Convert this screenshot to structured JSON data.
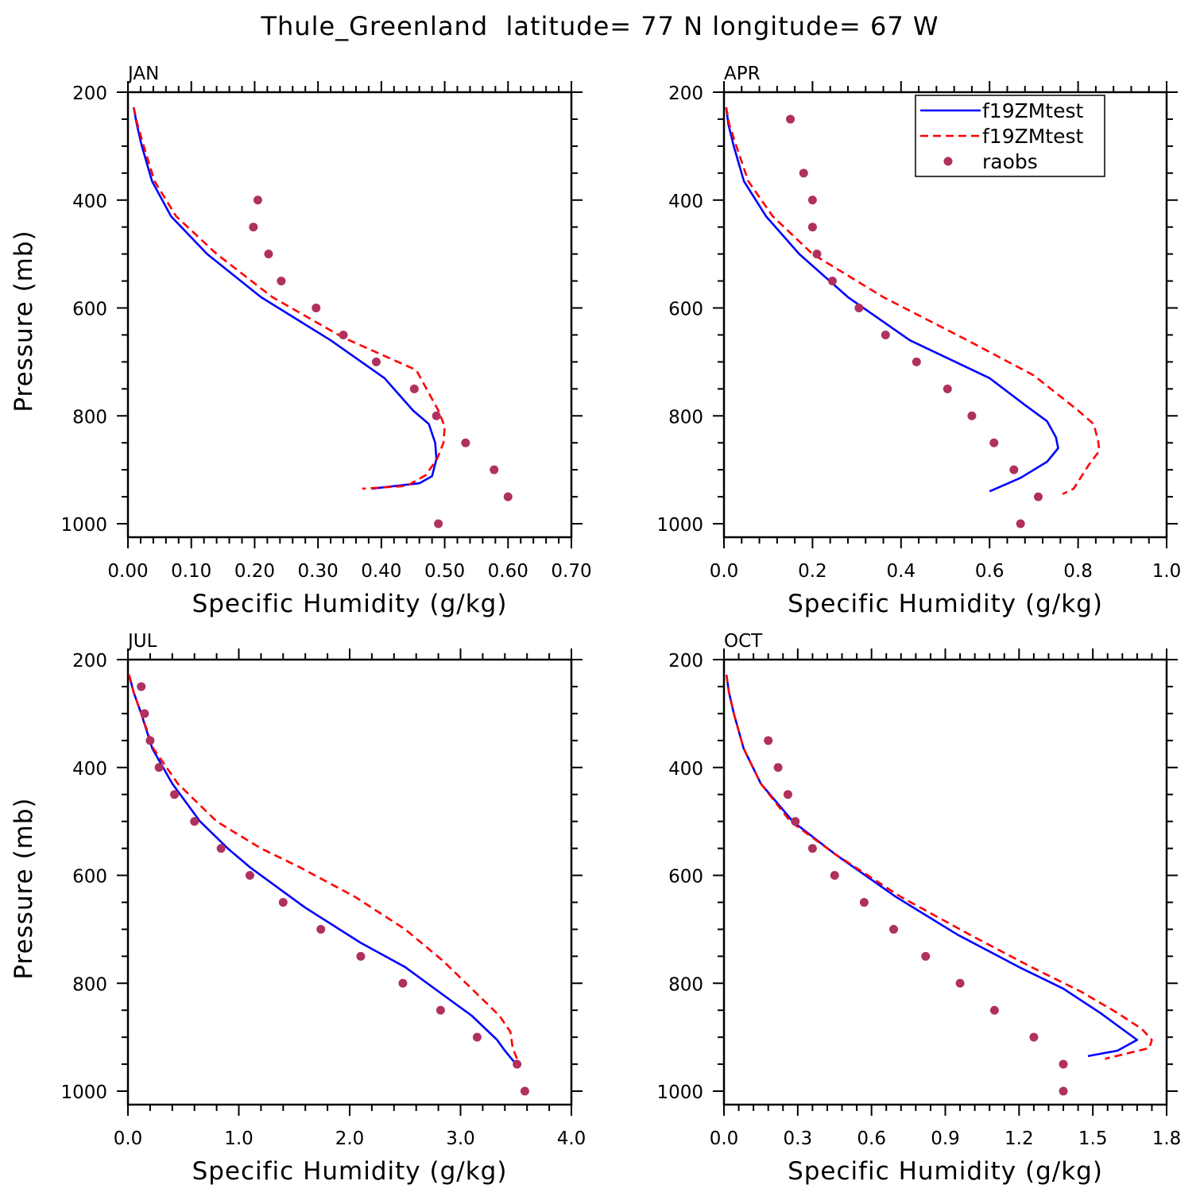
{
  "title": "Thule_Greenland  latitude= 77 N longitude= 67 W",
  "legend": {
    "entries": [
      {
        "label": "f19ZMtest",
        "color": "#0000ff",
        "style": "solid"
      },
      {
        "label": "f19ZMtest",
        "color": "#ff0000",
        "style": "dashed"
      },
      {
        "label": "raobs",
        "color": "#b03060",
        "style": "dot"
      }
    ]
  },
  "chart_data": [
    {
      "type": "line",
      "panel": "JAN",
      "title": "JAN",
      "xlabel": "Specific Humidity (g/kg)",
      "ylabel": "Pressure (mb)",
      "xlim": [
        0,
        0.7
      ],
      "ylim": [
        200,
        1025
      ],
      "y_inverted": true,
      "xticks": [
        "0.00",
        "0.10",
        "0.20",
        "0.30",
        "0.40",
        "0.50",
        "0.60",
        "0.70"
      ],
      "xtick_values": [
        0,
        0.1,
        0.2,
        0.3,
        0.4,
        0.5,
        0.6,
        0.7
      ],
      "yticks": [
        "200",
        "400",
        "600",
        "800",
        "1000"
      ],
      "ytick_values": [
        200,
        400,
        600,
        800,
        1000
      ],
      "series": [
        {
          "color": "#0000ff",
          "style": "solid",
          "x": [
            0.009,
            0.014,
            0.022,
            0.038,
            0.068,
            0.125,
            0.21,
            0.32,
            0.405,
            0.45,
            0.475,
            0.485,
            0.487,
            0.48,
            0.46,
            0.385
          ],
          "y": [
            228,
            260,
            300,
            365,
            430,
            500,
            580,
            660,
            730,
            790,
            815,
            850,
            880,
            912,
            925,
            935
          ]
        },
        {
          "color": "#ff0000",
          "style": "dashed",
          "x": [
            0.009,
            0.015,
            0.025,
            0.042,
            0.076,
            0.14,
            0.228,
            0.34,
            0.455,
            0.49,
            0.5,
            0.498,
            0.488,
            0.47,
            0.44,
            0.37
          ],
          "y": [
            228,
            260,
            300,
            365,
            430,
            500,
            580,
            655,
            715,
            790,
            820,
            850,
            880,
            910,
            930,
            935
          ]
        },
        {
          "color": "#b03060",
          "style": "points",
          "x": [
            0.205,
            0.198,
            0.222,
            0.242,
            0.297,
            0.34,
            0.392,
            0.452,
            0.487,
            0.533,
            0.578,
            0.6,
            0.49
          ],
          "y": [
            400,
            450,
            500,
            550,
            600,
            650,
            700,
            750,
            800,
            850,
            900,
            950,
            1000
          ]
        }
      ]
    },
    {
      "type": "line",
      "panel": "APR",
      "title": "APR",
      "xlabel": "Specific Humidity (g/kg)",
      "ylabel": "",
      "xlim": [
        0,
        1.0
      ],
      "ylim": [
        200,
        1025
      ],
      "y_inverted": true,
      "xticks": [
        "0.0",
        "0.2",
        "0.4",
        "0.6",
        "0.8",
        "1.0"
      ],
      "xtick_values": [
        0,
        0.2,
        0.4,
        0.6,
        0.8,
        1.0
      ],
      "yticks": [
        "200",
        "400",
        "600",
        "800",
        "1000"
      ],
      "ytick_values": [
        200,
        400,
        600,
        800,
        1000
      ],
      "series": [
        {
          "color": "#0000ff",
          "style": "solid",
          "x": [
            0.005,
            0.01,
            0.022,
            0.045,
            0.095,
            0.17,
            0.28,
            0.42,
            0.6,
            0.68,
            0.73,
            0.75,
            0.755,
            0.73,
            0.67,
            0.6
          ],
          "y": [
            228,
            260,
            300,
            365,
            430,
            500,
            580,
            660,
            730,
            780,
            810,
            840,
            860,
            885,
            915,
            940
          ]
        },
        {
          "color": "#ff0000",
          "style": "dashed",
          "x": [
            0.005,
            0.012,
            0.028,
            0.055,
            0.11,
            0.2,
            0.36,
            0.55,
            0.7,
            0.8,
            0.835,
            0.845,
            0.848,
            0.825,
            0.79,
            0.765
          ],
          "y": [
            228,
            260,
            300,
            365,
            430,
            500,
            580,
            660,
            725,
            790,
            815,
            845,
            865,
            890,
            935,
            945
          ]
        },
        {
          "color": "#b03060",
          "style": "points",
          "x": [
            0.15,
            0.18,
            0.2,
            0.2,
            0.21,
            0.245,
            0.305,
            0.365,
            0.435,
            0.505,
            0.56,
            0.61,
            0.655,
            0.71,
            0.67
          ],
          "y": [
            250,
            350,
            400,
            450,
            500,
            550,
            600,
            650,
            700,
            750,
            800,
            850,
            900,
            950,
            1000
          ]
        }
      ]
    },
    {
      "type": "line",
      "panel": "JUL",
      "title": "JUL",
      "xlabel": "Specific Humidity (g/kg)",
      "ylabel": "Pressure (mb)",
      "xlim": [
        0,
        4.0
      ],
      "ylim": [
        200,
        1025
      ],
      "y_inverted": true,
      "xticks": [
        "0.0",
        "1.0",
        "2.0",
        "3.0",
        "4.0"
      ],
      "xtick_values": [
        0,
        1,
        2,
        3,
        4
      ],
      "yticks": [
        "200",
        "400",
        "600",
        "800",
        "1000"
      ],
      "ytick_values": [
        200,
        400,
        600,
        800,
        1000
      ],
      "series": [
        {
          "color": "#0000ff",
          "style": "solid",
          "x": [
            0.01,
            0.05,
            0.12,
            0.22,
            0.4,
            0.65,
            0.9,
            1.1,
            1.6,
            2.1,
            2.5,
            2.8,
            3.1,
            3.33,
            3.4,
            3.48
          ],
          "y": [
            228,
            260,
            300,
            365,
            430,
            500,
            550,
            585,
            660,
            725,
            770,
            815,
            860,
            905,
            925,
            945
          ]
        },
        {
          "color": "#ff0000",
          "style": "dashed",
          "x": [
            0.01,
            0.05,
            0.12,
            0.23,
            0.45,
            0.8,
            1.2,
            1.55,
            2.05,
            2.5,
            2.85,
            3.1,
            3.35,
            3.45,
            3.47,
            3.52
          ],
          "y": [
            228,
            260,
            300,
            365,
            430,
            500,
            550,
            585,
            640,
            700,
            760,
            810,
            860,
            890,
            920,
            945
          ]
        },
        {
          "color": "#b03060",
          "style": "points",
          "x": [
            0.12,
            0.15,
            0.2,
            0.28,
            0.42,
            0.6,
            0.84,
            1.1,
            1.4,
            1.74,
            2.1,
            2.48,
            2.82,
            3.15,
            3.51,
            3.58
          ],
          "y": [
            250,
            300,
            350,
            400,
            450,
            500,
            550,
            600,
            650,
            700,
            750,
            800,
            850,
            900,
            950,
            1000
          ]
        }
      ]
    },
    {
      "type": "line",
      "panel": "OCT",
      "title": "OCT",
      "xlabel": "Specific Humidity (g/kg)",
      "ylabel": "",
      "xlim": [
        0,
        1.8
      ],
      "ylim": [
        200,
        1025
      ],
      "y_inverted": true,
      "xticks": [
        "0.0",
        "0.3",
        "0.6",
        "0.9",
        "1.2",
        "1.5",
        "1.8"
      ],
      "xtick_values": [
        0,
        0.3,
        0.6,
        0.9,
        1.2,
        1.5,
        1.8
      ],
      "yticks": [
        "200",
        "400",
        "600",
        "800",
        "1000"
      ],
      "ytick_values": [
        200,
        400,
        600,
        800,
        1000
      ],
      "series": [
        {
          "color": "#0000ff",
          "style": "solid",
          "x": [
            0.01,
            0.02,
            0.04,
            0.08,
            0.15,
            0.28,
            0.45,
            0.7,
            0.95,
            1.2,
            1.38,
            1.53,
            1.62,
            1.68,
            1.6,
            1.48
          ],
          "y": [
            228,
            260,
            300,
            365,
            430,
            500,
            560,
            640,
            710,
            770,
            810,
            855,
            885,
            905,
            925,
            935
          ]
        },
        {
          "color": "#ff0000",
          "style": "dashed",
          "x": [
            0.01,
            0.02,
            0.04,
            0.08,
            0.15,
            0.27,
            0.45,
            0.72,
            1.0,
            1.25,
            1.45,
            1.6,
            1.7,
            1.74,
            1.73,
            1.55
          ],
          "y": [
            228,
            260,
            300,
            365,
            430,
            500,
            560,
            640,
            710,
            770,
            815,
            855,
            885,
            905,
            920,
            940
          ]
        },
        {
          "color": "#b03060",
          "style": "points",
          "x": [
            0.18,
            0.22,
            0.26,
            0.29,
            0.36,
            0.45,
            0.57,
            0.69,
            0.82,
            0.96,
            1.1,
            1.26,
            1.38,
            1.38
          ],
          "y": [
            350,
            400,
            450,
            500,
            550,
            600,
            650,
            700,
            750,
            800,
            850,
            900,
            950,
            1000
          ]
        }
      ]
    }
  ]
}
